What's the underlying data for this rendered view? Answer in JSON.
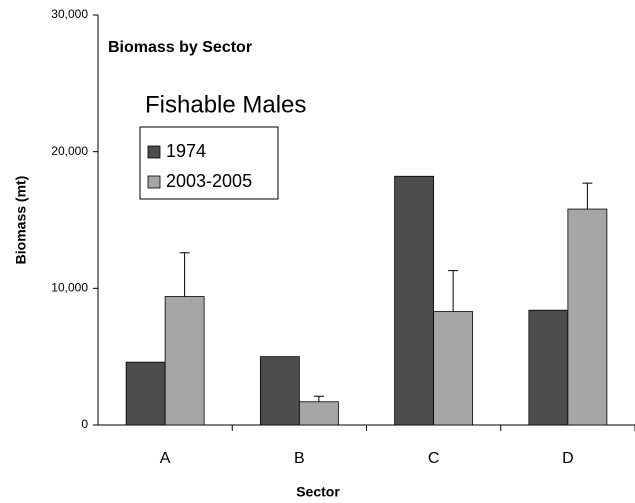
{
  "chart_data": {
    "type": "bar",
    "title": "Biomass by Sector",
    "subtitle": "Fishable Males",
    "x_label": "Sector",
    "y_label": "Biomass (mt)",
    "categories": [
      "A",
      "B",
      "C",
      "D"
    ],
    "series": [
      {
        "name": "1974",
        "color": "#4d4d4d",
        "values": [
          4600,
          5000,
          18200,
          8400
        ]
      },
      {
        "name": "2003-2005",
        "color": "#a6a6a6",
        "values": [
          9400,
          1700,
          8300,
          15800
        ],
        "errors": [
          3200,
          400,
          3000,
          1900
        ]
      }
    ],
    "ylim": [
      0,
      30000
    ],
    "yticks": [
      0,
      {
        "value": 10000,
        "label": "10,000"
      },
      {
        "value": 20000,
        "label": "20,000"
      },
      {
        "value": 30000,
        "label": "30,000"
      }
    ],
    "grid": false,
    "legend": "upper left"
  }
}
